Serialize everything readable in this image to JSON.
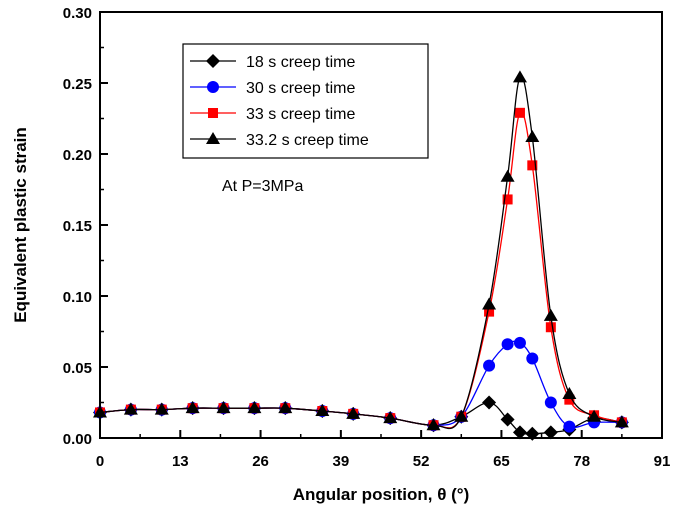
{
  "chart_data": {
    "type": "line",
    "title": "",
    "xlabel": "Angular position, θ (°)",
    "ylabel": "Equivalent plastic strain",
    "xlim": [
      0,
      91
    ],
    "ylim": [
      0,
      0.3
    ],
    "xticks": [
      "0",
      "13",
      "26",
      "39",
      "52",
      "65",
      "78",
      "91"
    ],
    "yticks": [
      "0.00",
      "0.05",
      "0.10",
      "0.15",
      "0.20",
      "0.25",
      "0.30"
    ],
    "annotation": "At P=3MPa",
    "legend_position": "top-left",
    "x": [
      0,
      5,
      10,
      15,
      20,
      25,
      30,
      36,
      41,
      47,
      54,
      58.5,
      63,
      66,
      68,
      70,
      73,
      76,
      80,
      84.5
    ],
    "series": [
      {
        "name": "18 s creep time",
        "color": "#000000",
        "marker": "diamond",
        "values": [
          0.018,
          0.02,
          0.02,
          0.021,
          0.021,
          0.021,
          0.021,
          0.019,
          0.017,
          0.014,
          0.009,
          0.015,
          0.025,
          0.013,
          0.004,
          0.003,
          0.004,
          0.006,
          0.014,
          0.011
        ]
      },
      {
        "name": "30 s creep time",
        "color": "#0000ff",
        "marker": "circle",
        "values": [
          0.018,
          0.02,
          0.02,
          0.021,
          0.021,
          0.021,
          0.021,
          0.019,
          0.017,
          0.014,
          0.009,
          0.015,
          0.051,
          0.066,
          0.067,
          0.056,
          0.025,
          0.008,
          0.011,
          0.011
        ]
      },
      {
        "name": "33 s creep time",
        "color": "#ff0000",
        "marker": "square",
        "values": [
          0.018,
          0.02,
          0.02,
          0.021,
          0.021,
          0.021,
          0.021,
          0.019,
          0.017,
          0.014,
          0.009,
          0.015,
          0.089,
          0.168,
          0.229,
          0.192,
          0.078,
          0.027,
          0.016,
          0.011
        ]
      },
      {
        "name": "33.2 s creep time",
        "color": "#000000",
        "marker": "triangle",
        "values": [
          0.018,
          0.02,
          0.02,
          0.021,
          0.021,
          0.021,
          0.021,
          0.019,
          0.017,
          0.014,
          0.009,
          0.015,
          0.094,
          0.184,
          0.254,
          0.212,
          0.086,
          0.031,
          0.015,
          0.011
        ]
      }
    ]
  }
}
